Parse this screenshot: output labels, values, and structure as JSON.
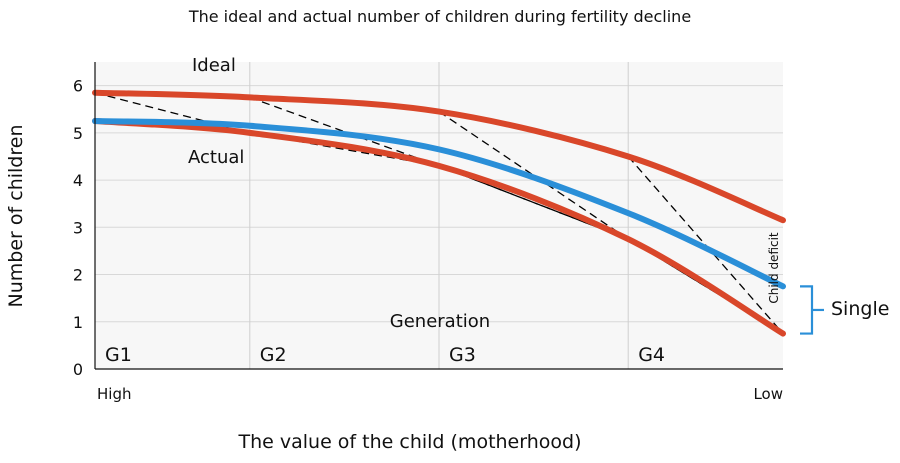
{
  "chart_data": {
    "type": "line",
    "title": "The ideal and actual number of children during fertility decline",
    "xlabel": "The value of the child (motherhood)",
    "ylabel": "Number of children",
    "x_axis_labels": {
      "left": "High",
      "right": "Low"
    },
    "xlim": [
      0,
      1
    ],
    "ylim": [
      0,
      6.5
    ],
    "y_ticks": [
      0,
      1,
      2,
      3,
      4,
      5,
      6
    ],
    "generations": [
      "G1",
      "G2",
      "G3",
      "G4"
    ],
    "generation_boundaries": [
      0,
      0.225,
      0.5,
      0.775,
      1
    ],
    "grid": true,
    "annotations": {
      "ideal": "Ideal",
      "actual": "Actual",
      "generation": "Generation",
      "child_deficit": "Child deficit",
      "single": "Single"
    },
    "colors": {
      "ideal": "#d9472a",
      "actual": "#d9472a",
      "blue": "#2a8fd8",
      "bracket": "#2a8fd8",
      "dashed": "#000000"
    },
    "series": [
      {
        "name": "Ideal",
        "x": [
          0,
          0.225,
          0.5,
          0.775,
          1
        ],
        "y": [
          5.85,
          5.75,
          5.45,
          4.5,
          3.15
        ]
      },
      {
        "name": "Actual",
        "x": [
          0,
          0.225,
          0.5,
          0.775,
          1
        ],
        "y": [
          5.25,
          5.0,
          4.3,
          2.75,
          0.75
        ]
      },
      {
        "name": "",
        "x": [
          0,
          0.225,
          0.5,
          0.775,
          1
        ],
        "y": [
          5.25,
          5.15,
          4.65,
          3.3,
          1.75
        ]
      }
    ],
    "dashed_lines": [
      {
        "x": [
          0,
          0.225,
          0.5,
          0.775,
          1
        ],
        "y": [
          5.85,
          5.0,
          4.3,
          2.75,
          0.75
        ]
      },
      {
        "x": [
          0.225,
          0.5,
          0.775,
          1
        ],
        "y": [
          5.75,
          4.3,
          2.75,
          0.75
        ]
      },
      {
        "x": [
          0.5,
          0.775,
          1
        ],
        "y": [
          5.45,
          2.75,
          0.75
        ]
      },
      {
        "x": [
          0.775,
          1
        ],
        "y": [
          4.5,
          0.75
        ]
      }
    ],
    "single_bracket_range": [
      0.75,
      1.75
    ]
  }
}
